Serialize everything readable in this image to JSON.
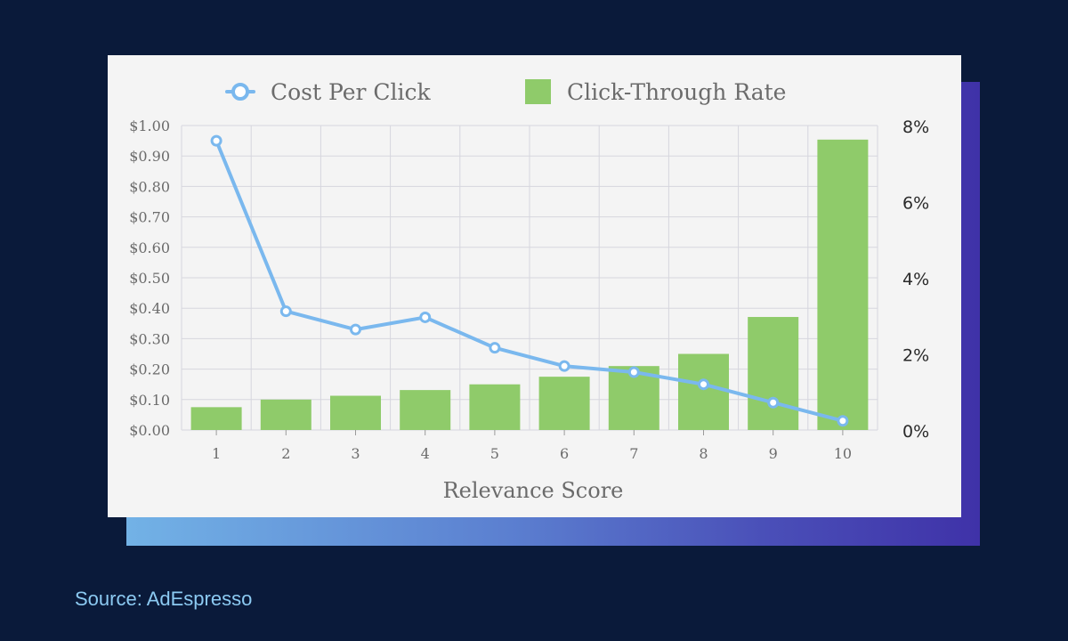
{
  "source_text": "Source: AdEspresso",
  "colors": {
    "background": "#0a1a3a",
    "card": "#f4f4f4",
    "line": "#7ab8ee",
    "bar": "#8fcb6a",
    "grid": "#d6d6de",
    "axis_text": "#6b6b6b",
    "right_axis_text": "#2a2a2a"
  },
  "chart_data": {
    "type": "bar",
    "xlabel": "Relevance Score",
    "categories": [
      "1",
      "2",
      "3",
      "4",
      "5",
      "6",
      "7",
      "8",
      "9",
      "10"
    ],
    "legend_position": "top-center",
    "grid": true,
    "series": [
      {
        "name": "Cost Per Click",
        "type": "line",
        "axis": "left",
        "values": [
          0.95,
          0.39,
          0.33,
          0.37,
          0.27,
          0.21,
          0.19,
          0.15,
          0.09,
          0.03
        ]
      },
      {
        "name": "Click-Through Rate",
        "type": "bar",
        "axis": "right",
        "values": [
          0.6,
          0.8,
          0.9,
          1.05,
          1.2,
          1.4,
          1.68,
          2.0,
          2.97,
          7.63
        ]
      }
    ],
    "y_left": {
      "range": [
        0,
        1.0
      ],
      "ticks": [
        0,
        0.1,
        0.2,
        0.3,
        0.4,
        0.5,
        0.6,
        0.7,
        0.8,
        0.9,
        1.0
      ],
      "tick_labels": [
        "$0.00",
        "$0.10",
        "$0.20",
        "$0.30",
        "$0.40",
        "$0.50",
        "$0.60",
        "$0.70",
        "$0.80",
        "$0.90",
        "$1.00"
      ]
    },
    "y_right": {
      "range": [
        0,
        8
      ],
      "ticks": [
        0,
        2,
        4,
        6,
        8
      ],
      "tick_labels": [
        "0%",
        "2%",
        "4%",
        "6%",
        "8%"
      ]
    }
  }
}
